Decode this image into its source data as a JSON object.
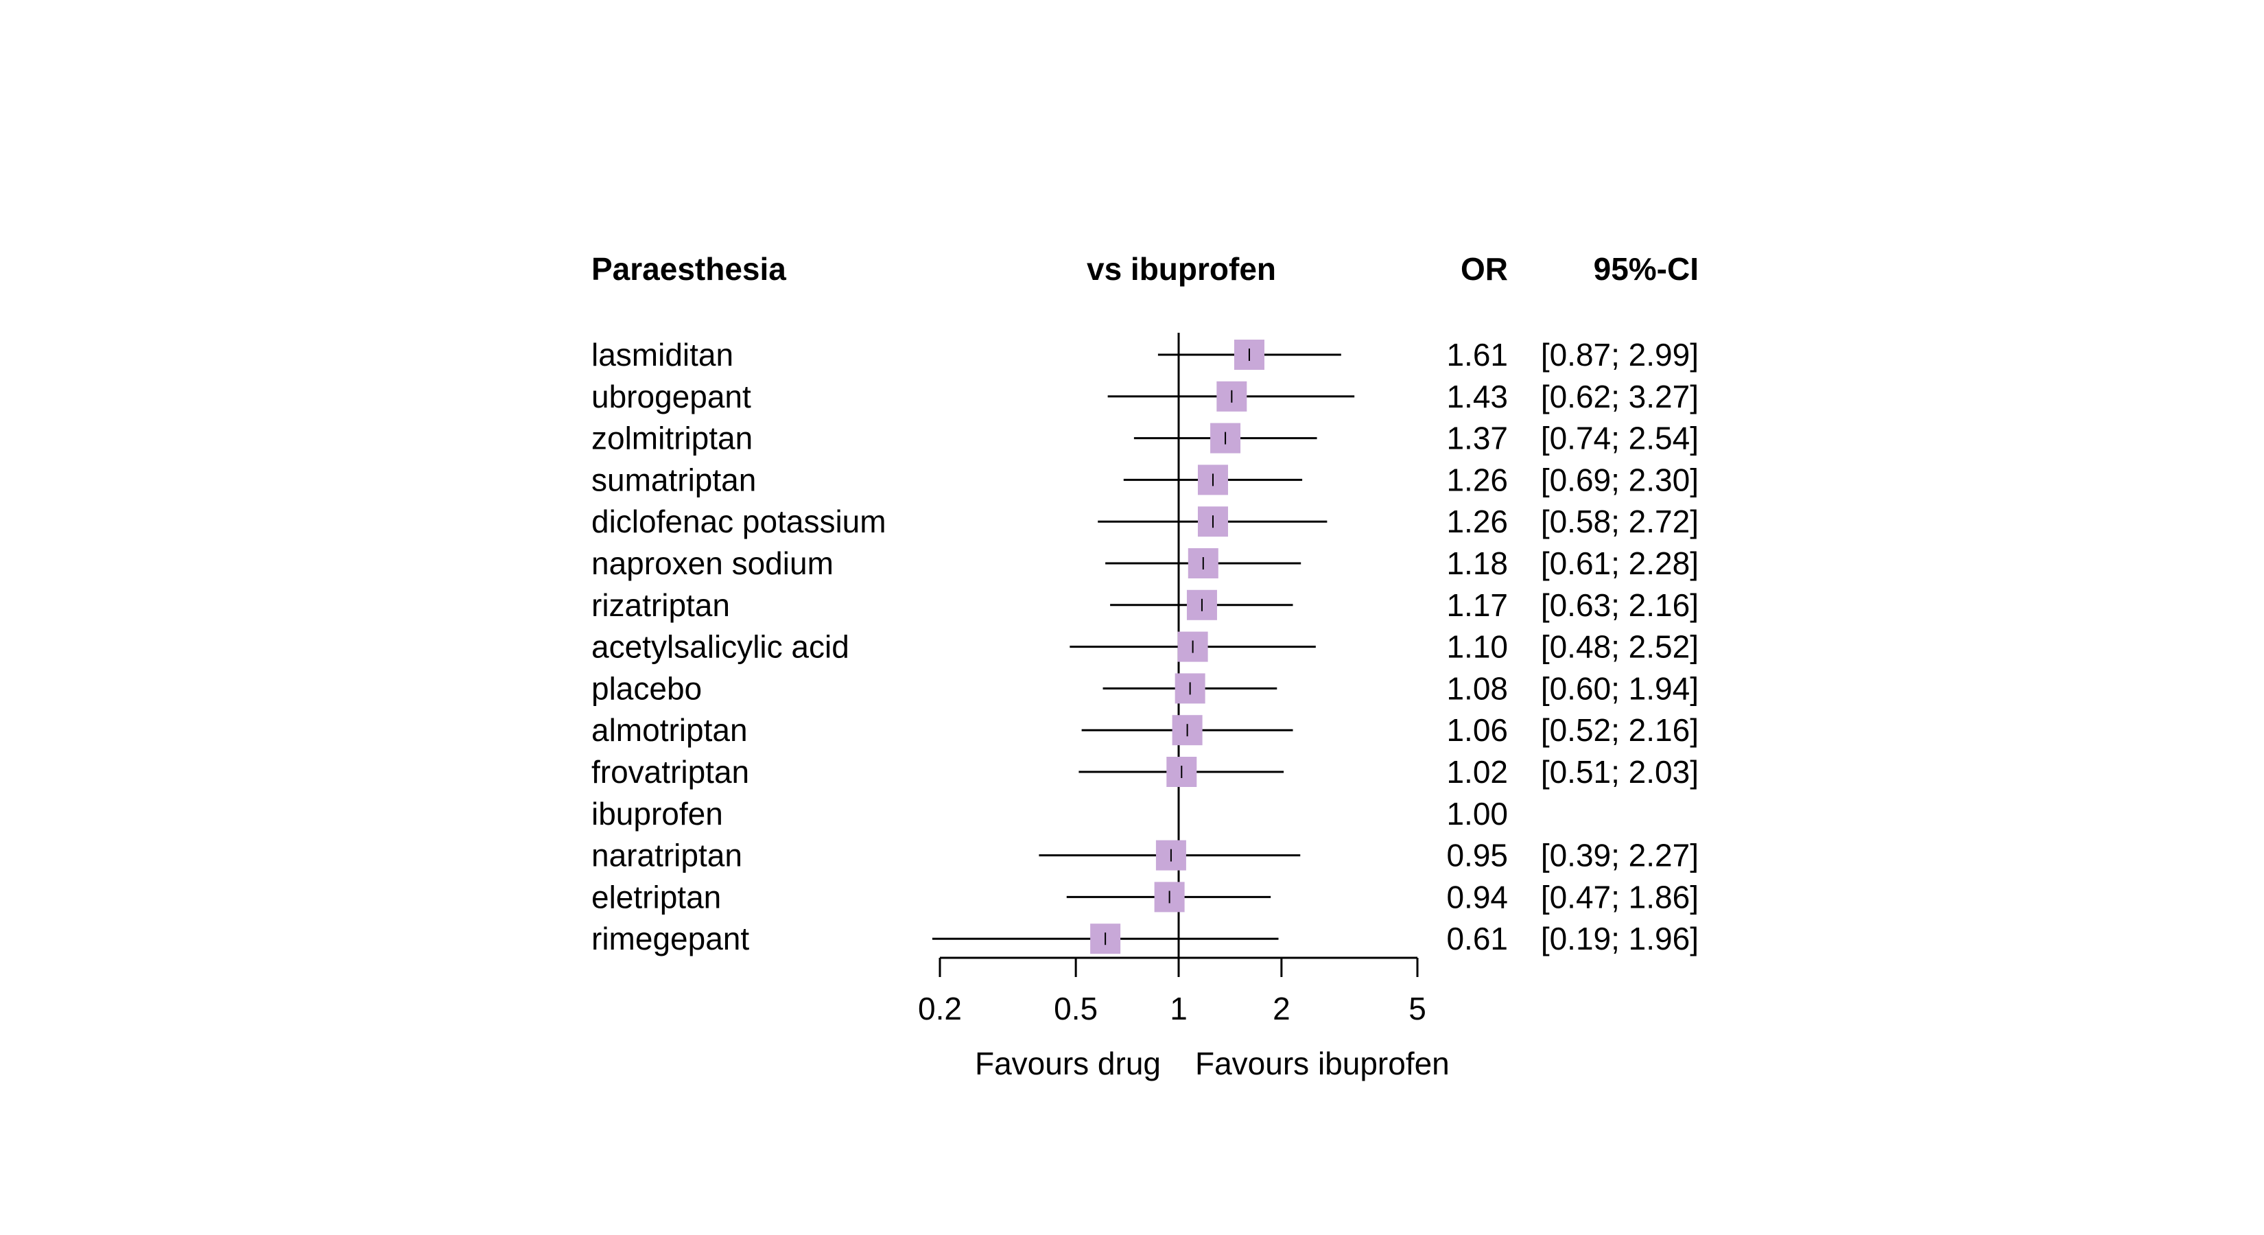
{
  "header": {
    "outcome": "Paraesthesia",
    "comparison": "vs ibuprofen",
    "or_label": "OR",
    "ci_label": "95%-CI"
  },
  "colors": {
    "box": "#c8a8d8",
    "line": "#000000"
  },
  "chart_data": {
    "type": "forest",
    "scale": "log",
    "xlim": [
      0.2,
      5
    ],
    "reference": 1,
    "ticks": [
      "0.2",
      "0.5",
      "1",
      "2",
      "5"
    ],
    "tick_values": [
      0.2,
      0.5,
      1,
      2,
      5
    ],
    "favours_left": "Favours drug",
    "favours_right": "Favours ibuprofen",
    "rows": [
      {
        "drug": "lasmiditan",
        "or": 1.61,
        "lower": 0.87,
        "upper": 2.99,
        "or_text": "1.61",
        "ci_text": "[0.87; 2.99]"
      },
      {
        "drug": "ubrogepant",
        "or": 1.43,
        "lower": 0.62,
        "upper": 3.27,
        "or_text": "1.43",
        "ci_text": "[0.62; 3.27]"
      },
      {
        "drug": "zolmitriptan",
        "or": 1.37,
        "lower": 0.74,
        "upper": 2.54,
        "or_text": "1.37",
        "ci_text": "[0.74; 2.54]"
      },
      {
        "drug": "sumatriptan",
        "or": 1.26,
        "lower": 0.69,
        "upper": 2.3,
        "or_text": "1.26",
        "ci_text": "[0.69; 2.30]"
      },
      {
        "drug": "diclofenac potassium",
        "or": 1.26,
        "lower": 0.58,
        "upper": 2.72,
        "or_text": "1.26",
        "ci_text": "[0.58; 2.72]"
      },
      {
        "drug": "naproxen sodium",
        "or": 1.18,
        "lower": 0.61,
        "upper": 2.28,
        "or_text": "1.18",
        "ci_text": "[0.61; 2.28]"
      },
      {
        "drug": "rizatriptan",
        "or": 1.17,
        "lower": 0.63,
        "upper": 2.16,
        "or_text": "1.17",
        "ci_text": "[0.63; 2.16]"
      },
      {
        "drug": "acetylsalicylic acid",
        "or": 1.1,
        "lower": 0.48,
        "upper": 2.52,
        "or_text": "1.10",
        "ci_text": "[0.48; 2.52]"
      },
      {
        "drug": "placebo",
        "or": 1.08,
        "lower": 0.6,
        "upper": 1.94,
        "or_text": "1.08",
        "ci_text": "[0.60; 1.94]"
      },
      {
        "drug": "almotriptan",
        "or": 1.06,
        "lower": 0.52,
        "upper": 2.16,
        "or_text": "1.06",
        "ci_text": "[0.52; 2.16]"
      },
      {
        "drug": "frovatriptan",
        "or": 1.02,
        "lower": 0.51,
        "upper": 2.03,
        "or_text": "1.02",
        "ci_text": "[0.51; 2.03]"
      },
      {
        "drug": "ibuprofen",
        "or": 1.0,
        "lower": null,
        "upper": null,
        "or_text": "1.00",
        "ci_text": ""
      },
      {
        "drug": "naratriptan",
        "or": 0.95,
        "lower": 0.39,
        "upper": 2.27,
        "or_text": "0.95",
        "ci_text": "[0.39; 2.27]"
      },
      {
        "drug": "eletriptan",
        "or": 0.94,
        "lower": 0.47,
        "upper": 1.86,
        "or_text": "0.94",
        "ci_text": "[0.47; 1.86]"
      },
      {
        "drug": "rimegepant",
        "or": 0.61,
        "lower": 0.19,
        "upper": 1.96,
        "or_text": "0.61",
        "ci_text": "[0.19; 1.96]"
      }
    ]
  }
}
